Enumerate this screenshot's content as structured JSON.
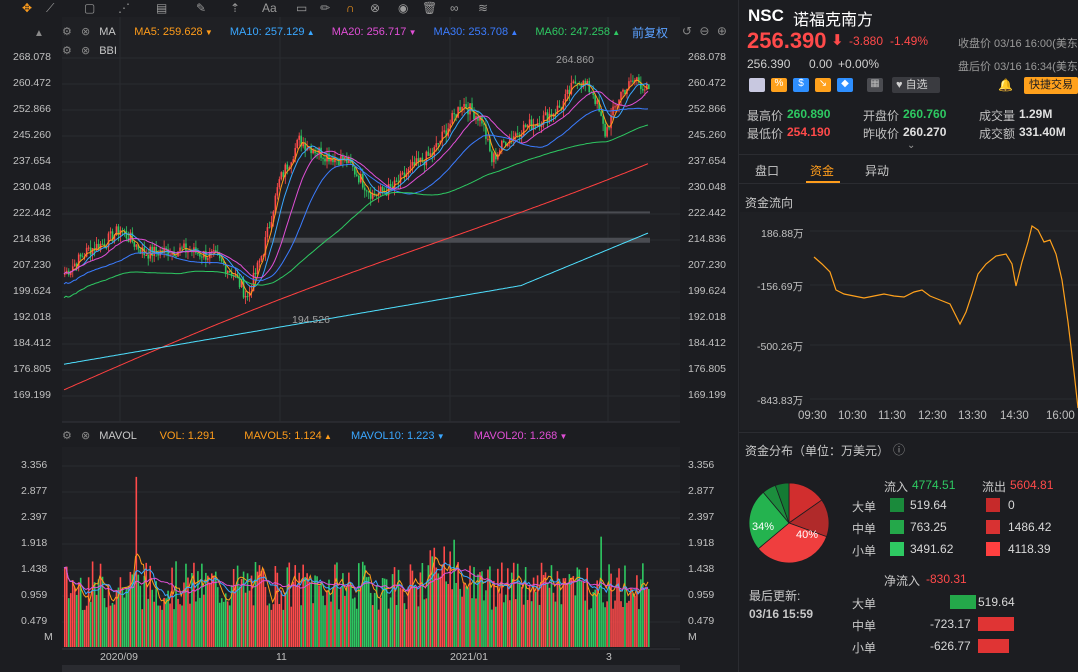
{
  "toolbar": {
    "icons": [
      "crosshair-icon",
      "trend-line-icon",
      "rectangle-icon",
      "multi-line-icon",
      "chart-tools-icon",
      "brush-icon",
      "arrow-up-icon",
      "text-icon",
      "ruler-icon",
      "magnet-icon",
      "lock-icon",
      "trash-icon",
      "link-icon",
      "fibonacci-icon"
    ]
  },
  "main_chart": {
    "indicator": "MA",
    "ma5": "MA5: 259.628",
    "ma10": "MA10: 257.129",
    "ma20": "MA20: 256.717",
    "ma30": "MA30: 253.708",
    "ma60": "MA60: 247.258",
    "adjust_label": "前复权",
    "indicator2": "BBI",
    "high_annotation": "264.860",
    "low_annotation": "194.526",
    "y_ticks": [
      "268.078",
      "260.472",
      "252.866",
      "245.260",
      "237.654",
      "230.048",
      "222.442",
      "214.836",
      "207.230",
      "199.624",
      "192.018",
      "184.412",
      "176.805",
      "169.199"
    ],
    "colors": {
      "ma5": "#ff9c1a",
      "ma10": "#3aa7ff",
      "ma20": "#e04fd6",
      "ma30": "#3b7cff",
      "ma60": "#2ec962",
      "up": "#ff4a4a",
      "down": "#2ec962"
    }
  },
  "volume_chart": {
    "indicator": "MAVOL",
    "vol": "VOL: 1.291",
    "mavol5": "MAVOL5: 1.124",
    "mavol10": "MAVOL10: 1.223",
    "mavol20": "MAVOL20: 1.268",
    "y_ticks": [
      "3.356",
      "2.877",
      "2.397",
      "1.918",
      "1.438",
      "0.959",
      "0.479"
    ],
    "unit": "M"
  },
  "x_axis": [
    "2020/09",
    "11",
    "2021/01",
    "3"
  ],
  "quote": {
    "symbol": "NSC",
    "name": "诺福克南方",
    "price": "256.390",
    "change": "-3.880",
    "change_pct": "-1.49%",
    "close_time": "收盘价 03/16 16:00(美东",
    "after_price": "256.390",
    "after_change": "0.00",
    "after_pct": "+0.00%",
    "after_time": "盘后价 03/16 16:34(美东",
    "watch_label": "自选",
    "trade_label": "快捷交易",
    "high_label": "最高价",
    "high": "260.890",
    "low_label": "最低价",
    "low": "254.190",
    "open_label": "开盘价",
    "open": "260.760",
    "prev_label": "昨收价",
    "prev": "260.270",
    "vol_label": "成交量",
    "vol": "1.29M",
    "amt_label": "成交额",
    "amt": "331.40M"
  },
  "tabs": [
    "盘口",
    "资金",
    "异动"
  ],
  "fund_flow": {
    "title": "资金流向",
    "y_ticks": [
      "186.88万",
      "-156.69万",
      "-500.26万",
      "-843.83万"
    ],
    "x_ticks": [
      "09:30",
      "10:30",
      "11:30",
      "12:30",
      "13:30",
      "14:30",
      "16:00"
    ],
    "line_color": "#ffa11c"
  },
  "distribution": {
    "title": "资金分布（单位：万美元）",
    "inflow_label": "流入",
    "inflow": "4774.51",
    "outflow_label": "流出",
    "outflow": "5604.81",
    "pie_in_pct": "34%",
    "pie_out_pct": "40%",
    "rows": [
      {
        "label": "大单",
        "in": "519.64",
        "out": "0"
      },
      {
        "label": "中单",
        "in": "763.25",
        "out": "1486.42"
      },
      {
        "label": "小单",
        "in": "3491.62",
        "out": "4118.39"
      }
    ],
    "updated_label": "最后更新:",
    "updated_time": "03/16 15:59",
    "net_label": "净流入",
    "net": "-830.31",
    "net_rows": [
      {
        "label": "大单",
        "value": "519.64",
        "sign": 1,
        "fraction": 0.72
      },
      {
        "label": "中单",
        "value": "-723.17",
        "sign": -1,
        "fraction": 1.0
      },
      {
        "label": "小单",
        "value": "-626.77",
        "sign": -1,
        "fraction": 0.87
      }
    ]
  }
}
